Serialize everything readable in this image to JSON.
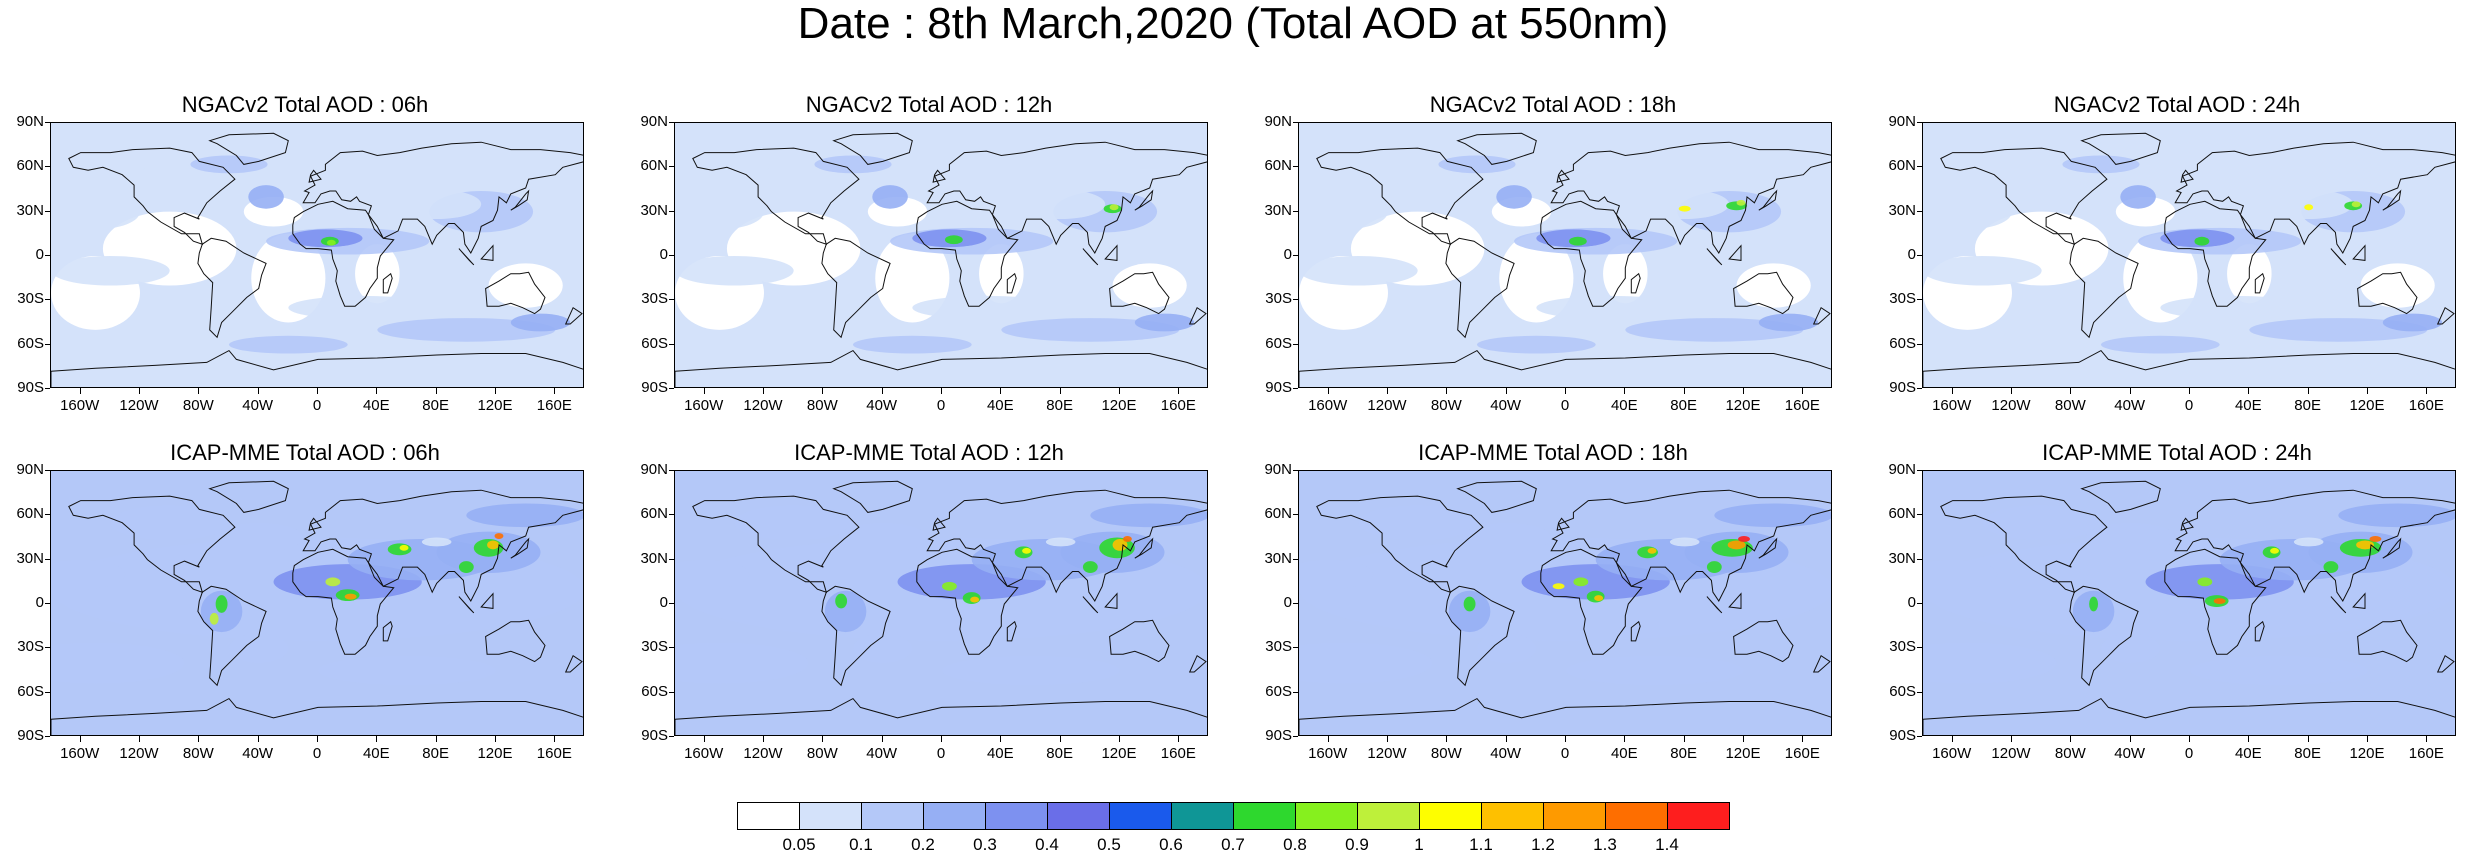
{
  "title": "Date : 8th March,2020 (Total AOD at 550nm)",
  "lat_labels": [
    "90N",
    "60N",
    "30N",
    "0",
    "30S",
    "60S",
    "90S"
  ],
  "lon_labels": [
    "160W",
    "120W",
    "80W",
    "40W",
    "0",
    "40E",
    "80E",
    "120E",
    "160E"
  ],
  "panels": [
    {
      "title": "NGACv2 Total AOD : 06h",
      "model": "NGACv2",
      "hour": "06h"
    },
    {
      "title": "NGACv2 Total AOD : 12h",
      "model": "NGACv2",
      "hour": "12h"
    },
    {
      "title": "NGACv2 Total AOD : 18h",
      "model": "NGACv2",
      "hour": "18h"
    },
    {
      "title": "NGACv2 Total AOD : 24h",
      "model": "NGACv2",
      "hour": "24h"
    },
    {
      "title": "ICAP-MME Total AOD : 06h",
      "model": "ICAP-MME",
      "hour": "06h"
    },
    {
      "title": "ICAP-MME Total AOD : 12h",
      "model": "ICAP-MME",
      "hour": "12h"
    },
    {
      "title": "ICAP-MME Total AOD : 18h",
      "model": "ICAP-MME",
      "hour": "18h"
    },
    {
      "title": "ICAP-MME Total AOD : 24h",
      "model": "ICAP-MME",
      "hour": "24h"
    }
  ],
  "colorbar": {
    "labels": [
      "0.05",
      "0.1",
      "0.2",
      "0.3",
      "0.4",
      "0.5",
      "0.6",
      "0.7",
      "0.8",
      "0.9",
      "1",
      "1.1",
      "1.2",
      "1.3",
      "1.4"
    ],
    "colors": [
      "#ffffff",
      "#d4e2fa",
      "#b4c8f8",
      "#96aff4",
      "#7d91f0",
      "#6a6ee8",
      "#1a5aec",
      "#0f9696",
      "#2ed82e",
      "#86f01e",
      "#bef03a",
      "#fefe00",
      "#fec000",
      "#fe9a00",
      "#fe6e00",
      "#fe1e1e"
    ]
  }
}
